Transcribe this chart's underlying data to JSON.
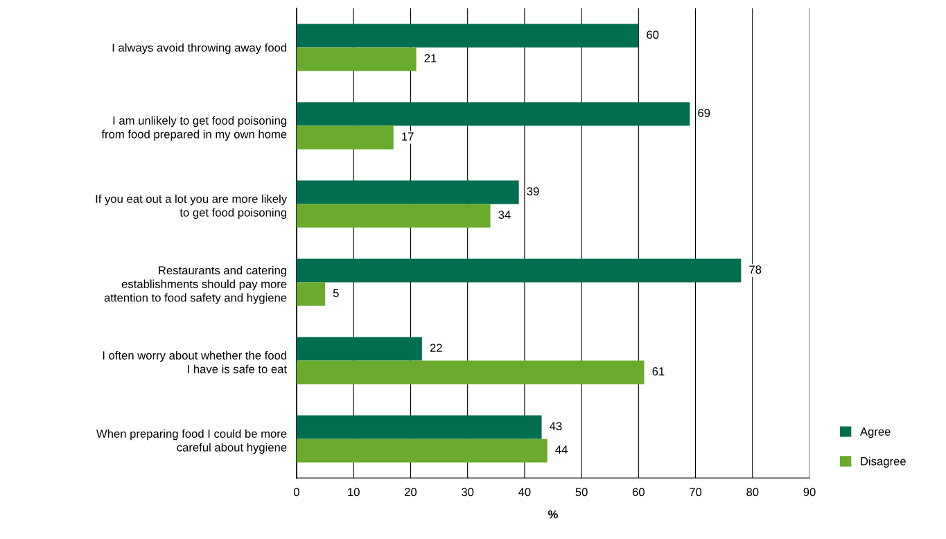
{
  "chart_data": {
    "type": "bar",
    "orientation": "horizontal",
    "xlabel": "%",
    "categories": [
      "I always avoid throwing away food",
      "I am unlikely to get food poisoning\nfrom food prepared in my own home",
      "If you eat out a lot you are more likely\nto get food poisoning",
      "Restaurants and catering\nestablishments should pay more\nattention to food safety and hygiene",
      "I often worry about whether the food\nI have is safe to eat",
      "When preparing food I could be more\ncareful about hygiene"
    ],
    "series": [
      {
        "name": "Agree",
        "color": "#006e4f",
        "values": [
          60,
          69,
          39,
          78,
          22,
          43
        ]
      },
      {
        "name": "Disagree",
        "color": "#6aab2e",
        "values": [
          21,
          17,
          34,
          5,
          61,
          44
        ]
      }
    ],
    "xlim": [
      0,
      90
    ],
    "xticks": [
      0,
      10,
      20,
      30,
      40,
      50,
      60,
      70,
      80,
      90
    ],
    "grid": "x",
    "legend": "bottom right",
    "data_labels": true
  }
}
